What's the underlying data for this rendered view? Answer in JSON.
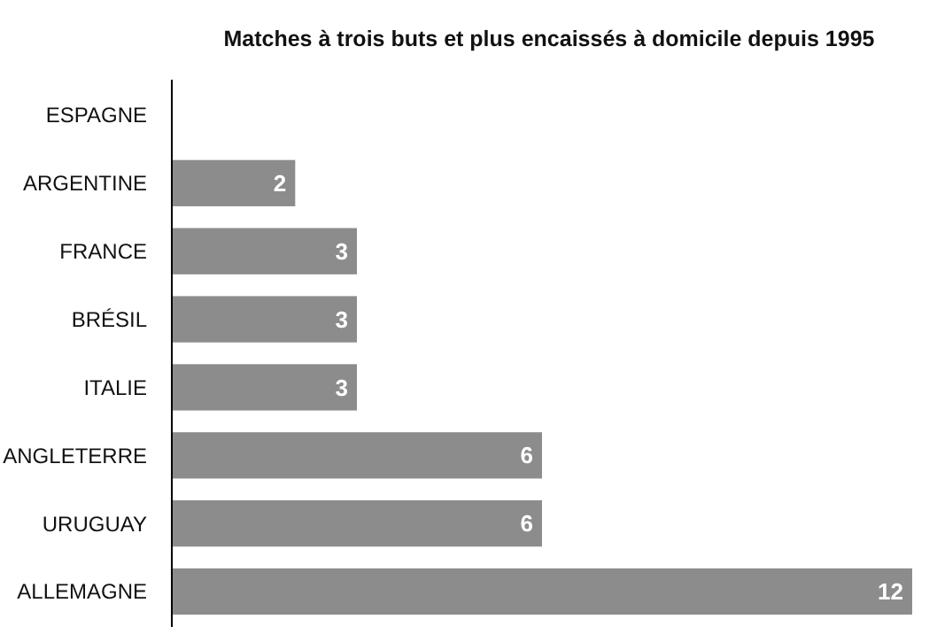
{
  "chart_data": {
    "type": "bar",
    "orientation": "horizontal",
    "title": "Matches à trois buts et plus encaissés à domicile depuis 1995",
    "categories": [
      "ESPAGNE",
      "ARGENTINE",
      "FRANCE",
      "BRÉSIL",
      "ITALIE",
      "ANGLETERRE",
      "URUGUAY",
      "ALLEMAGNE"
    ],
    "values": [
      0,
      2,
      3,
      3,
      3,
      6,
      6,
      12
    ],
    "value_labels": [
      null,
      "2",
      "3",
      "3",
      "3",
      "6",
      "6",
      "12"
    ],
    "color": "#8c8c8c"
  }
}
